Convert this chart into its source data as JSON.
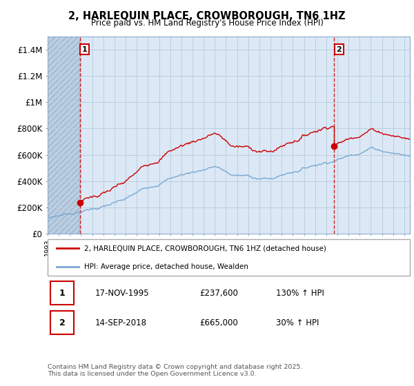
{
  "title": "2, HARLEQUIN PLACE, CROWBOROUGH, TN6 1HZ",
  "subtitle": "Price paid vs. HM Land Registry's House Price Index (HPI)",
  "ylim": [
    0,
    1500000
  ],
  "yticks": [
    0,
    200000,
    400000,
    600000,
    800000,
    1000000,
    1200000,
    1400000
  ],
  "ytick_labels": [
    "£0",
    "£200K",
    "£400K",
    "£600K",
    "£800K",
    "£1M",
    "£1.2M",
    "£1.4M"
  ],
  "x_start_year": 1993,
  "x_end_year": 2025,
  "sale1_year": 1995.88,
  "sale1_price": 237600,
  "sale2_year": 2018.71,
  "sale2_price": 665000,
  "red_line_color": "#cc0000",
  "blue_line_color": "#7aa8d0",
  "chart_bg_color": "#dce8f5",
  "hatch_color": "#b0c4d8",
  "grid_color": "#b8cfe0",
  "legend_red_label": "2, HARLEQUIN PLACE, CROWBOROUGH, TN6 1HZ (detached house)",
  "legend_blue_label": "HPI: Average price, detached house, Wealden",
  "table_row1": [
    "1",
    "17-NOV-1995",
    "£237,600",
    "130% ↑ HPI"
  ],
  "table_row2": [
    "2",
    "14-SEP-2018",
    "£665,000",
    "30% ↑ HPI"
  ],
  "footnote": "Contains HM Land Registry data © Crown copyright and database right 2025.\nThis data is licensed under the Open Government Licence v3.0.",
  "background_color": "#ffffff"
}
